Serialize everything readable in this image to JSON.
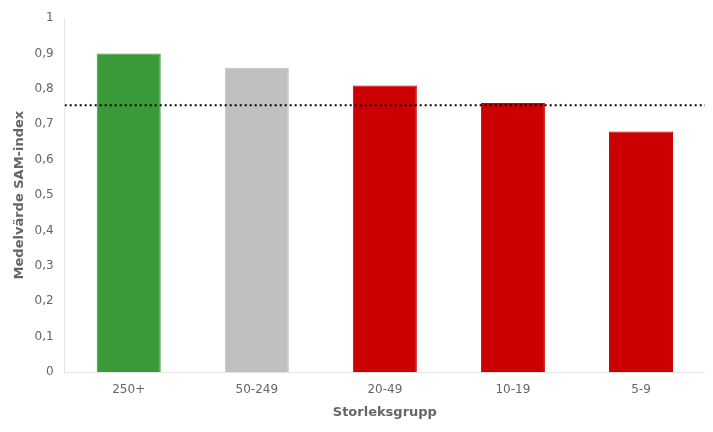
{
  "chart_data": {
    "type": "bar",
    "categories": [
      "250+",
      "50-249",
      "20-49",
      "10-19",
      "5-9"
    ],
    "values": [
      0.9,
      0.86,
      0.81,
      0.76,
      0.68
    ],
    "colors": [
      "#3a9a3a",
      "#c0c0c0",
      "#cc0000",
      "#cc0000",
      "#cc0000"
    ],
    "xlabel": "Storleksgrupp",
    "ylabel": "Medelvärde SAM-index",
    "ylim": [
      0,
      1
    ],
    "yticks": [
      0,
      {
        "value": 0.1,
        "label": "0,1"
      },
      {
        "value": 0.2,
        "label": "0,2"
      },
      {
        "value": 0.3,
        "label": "0,3"
      },
      {
        "value": 0.4,
        "label": "0,4"
      },
      {
        "value": 0.5,
        "label": "0,5"
      },
      {
        "value": 0.6,
        "label": "0,6"
      },
      {
        "value": 0.7,
        "label": "0,7"
      },
      {
        "value": 0.8,
        "label": "0,8"
      },
      {
        "value": 0.9,
        "label": "0,9"
      },
      1
    ],
    "hline": {
      "y": 0.754,
      "color": "#000000",
      "line_style": "dotted"
    },
    "grid": false
  }
}
